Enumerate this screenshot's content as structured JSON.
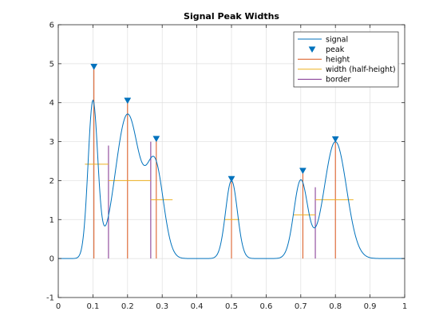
{
  "chart_data": {
    "type": "line",
    "title": "Signal Peak Widths",
    "xlabel": "",
    "ylabel": "",
    "xlim": [
      0,
      1
    ],
    "ylim": [
      -1,
      6
    ],
    "xticks": [
      0,
      0.1,
      0.2,
      0.3,
      0.4,
      0.5,
      0.6,
      0.7,
      0.8,
      0.9,
      1
    ],
    "xtick_labels": [
      "0",
      "0.1",
      "0.2",
      "0.3",
      "0.4",
      "0.5",
      "0.6",
      "0.7",
      "0.8",
      "0.9",
      "1"
    ],
    "yticks": [
      -1,
      0,
      1,
      2,
      3,
      4,
      5,
      6
    ],
    "ytick_labels": [
      "-1",
      "0",
      "1",
      "2",
      "3",
      "4",
      "5",
      "6"
    ],
    "grid": true,
    "legend_position": "top-right",
    "signal_components": [
      {
        "center": 0.1,
        "amplitude": 4.0,
        "sigma": 0.014
      },
      {
        "center": 0.2,
        "amplitude": 3.7,
        "sigma": 0.035
      },
      {
        "center": 0.28,
        "amplitude": 2.3,
        "sigma": 0.024
      },
      {
        "center": 0.5,
        "amplitude": 2.0,
        "sigma": 0.017
      },
      {
        "center": 0.7,
        "amplitude": 2.0,
        "sigma": 0.02
      },
      {
        "center": 0.8,
        "amplitude": 3.0,
        "sigma": 0.032
      }
    ],
    "peaks": [
      {
        "x": 0.103,
        "y": 4.93
      },
      {
        "x": 0.2,
        "y": 4.06
      },
      {
        "x": 0.283,
        "y": 3.08
      },
      {
        "x": 0.5,
        "y": 2.05
      },
      {
        "x": 0.706,
        "y": 2.26
      },
      {
        "x": 0.8,
        "y": 3.07
      }
    ],
    "half_height_widths": [
      {
        "y": 2.42,
        "x_start": 0.077,
        "x_end": 0.145
      },
      {
        "y": 2.0,
        "x_start": 0.145,
        "x_end": 0.267
      },
      {
        "y": 1.51,
        "x_start": 0.267,
        "x_end": 0.33
      },
      {
        "y": 1.0,
        "x_start": 0.479,
        "x_end": 0.523
      },
      {
        "y": 1.12,
        "x_start": 0.678,
        "x_end": 0.742
      },
      {
        "y": 1.51,
        "x_start": 0.742,
        "x_end": 0.852
      }
    ],
    "borders": [
      {
        "x": 0.145,
        "y": 2.9
      },
      {
        "x": 0.267,
        "y": 3.0
      },
      {
        "x": 0.742,
        "y": 1.83
      }
    ],
    "series": [
      {
        "name": "signal",
        "color": "#0072bd"
      },
      {
        "name": "peak",
        "color": "#0072bd"
      },
      {
        "name": "height",
        "color": "#d95319"
      },
      {
        "name": "width (half-height)",
        "color": "#edb120"
      },
      {
        "name": "border",
        "color": "#7e2f8e"
      }
    ]
  }
}
